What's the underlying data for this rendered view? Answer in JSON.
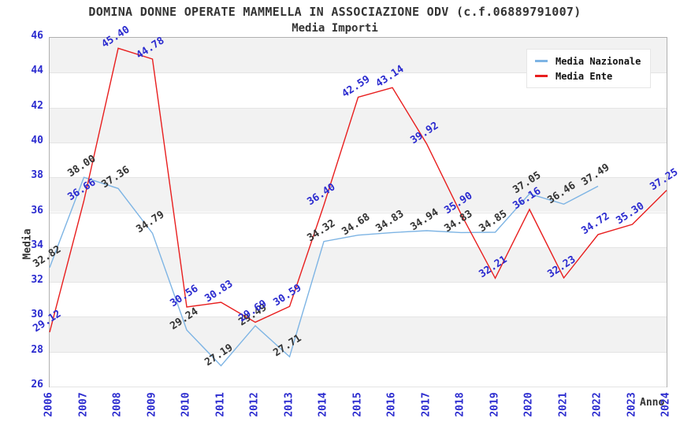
{
  "title": "DOMINA DONNE OPERATE MAMMELLA IN ASSOCIAZIONE ODV (c.f.06889791007)",
  "subtitle": "Media Importi",
  "axes": {
    "x_label": "Anno",
    "y_label": "Media",
    "x_ticks": [
      "2006",
      "2007",
      "2008",
      "2009",
      "2010",
      "2011",
      "2012",
      "2013",
      "2014",
      "2015",
      "2016",
      "2017",
      "2018",
      "2019",
      "2020",
      "2021",
      "2022",
      "2023",
      "2024"
    ],
    "y_ticks": [
      46,
      44,
      42,
      40,
      38,
      36,
      34,
      32,
      30,
      28,
      26
    ]
  },
  "colors": {
    "tick_label": "#2b2bcf",
    "gridline": "#e4e4e4",
    "band_gray": "#f2f2f2",
    "plot_border": "#b0b0b0",
    "title_text": "#333333"
  },
  "chart_data": {
    "type": "line",
    "x": [
      2006,
      2007,
      2008,
      2009,
      2010,
      2011,
      2012,
      2013,
      2014,
      2015,
      2016,
      2017,
      2018,
      2019,
      2020,
      2021,
      2022,
      2023,
      2024
    ],
    "xlabel": "Anno",
    "ylabel": "Media",
    "ylim": [
      26,
      46
    ],
    "ytick_step": 2,
    "grid": true,
    "legend_position": "top-right",
    "series": [
      {
        "name": "Media Nazionale",
        "color": "#7db4e4",
        "label_color": "#333333",
        "values": [
          32.82,
          38.0,
          37.36,
          34.79,
          29.24,
          27.19,
          29.49,
          27.71,
          34.32,
          34.68,
          34.83,
          34.94,
          34.83,
          34.85,
          37.05,
          36.46,
          37.49,
          null,
          null
        ]
      },
      {
        "name": "Media Ente",
        "color": "#e81e1e",
        "label_color": "#2b2bcf",
        "values": [
          29.12,
          36.66,
          45.4,
          44.78,
          30.56,
          30.83,
          29.69,
          30.59,
          36.4,
          42.59,
          43.14,
          39.92,
          35.9,
          32.21,
          36.16,
          32.23,
          34.72,
          35.3,
          37.25
        ]
      }
    ]
  }
}
